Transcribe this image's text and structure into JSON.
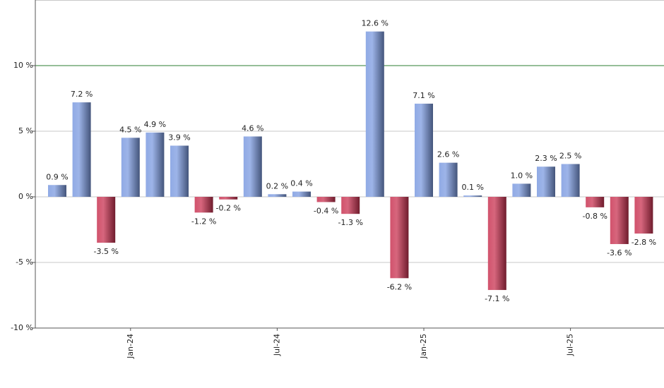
{
  "chart_data": {
    "type": "bar",
    "categories": [
      null,
      null,
      null,
      "Jan-24",
      null,
      null,
      null,
      null,
      null,
      "Jul-24",
      null,
      null,
      null,
      null,
      null,
      "Jan-25",
      null,
      null,
      null,
      null,
      null,
      "Jul-25",
      null,
      null,
      null
    ],
    "values": [
      0.9,
      7.2,
      -3.5,
      4.5,
      4.9,
      3.9,
      -1.2,
      -0.2,
      4.6,
      0.2,
      0.4,
      -0.4,
      -1.3,
      12.6,
      -6.2,
      7.1,
      2.6,
      0.1,
      -7.1,
      1.0,
      2.3,
      2.5,
      -0.8,
      -3.6,
      -2.8
    ],
    "value_labels": [
      "0.9 %",
      "7.2 %",
      "-3.5 %",
      "4.5 %",
      "4.9 %",
      "3.9 %",
      "-1.2 %",
      "-0.2 %",
      "4.6 %",
      "0.2 %",
      "0.4 %",
      "-0.4 %",
      "-1.3 %",
      "12.6 %",
      "-6.2 %",
      "7.1 %",
      "2.6 %",
      "0.1 %",
      "-7.1 %",
      "1.0 %",
      "2.3 %",
      "2.5 %",
      "-0.8 %",
      "-3.6 %",
      "-2.8 %"
    ],
    "positive_color": "#7c9be0",
    "negative_color": "#c93352",
    "reference_line": 10,
    "reference_color": "#2e7d32",
    "ylim": [
      -10,
      15
    ],
    "yticks": [
      {
        "value": -10,
        "label": "-10 %"
      },
      {
        "value": -5,
        "label": "-5 %"
      },
      {
        "value": 0,
        "label": "0 %"
      },
      {
        "value": 5,
        "label": "5 %"
      },
      {
        "value": 10,
        "label": "10 %"
      }
    ],
    "grid": true
  }
}
